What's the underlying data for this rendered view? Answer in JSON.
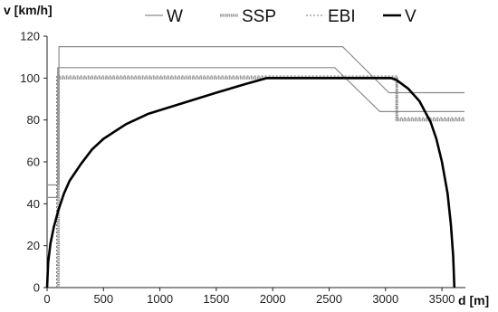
{
  "chart_data": {
    "type": "line",
    "title": "",
    "xlabel": "d [m]",
    "ylabel": "v [km/h]",
    "xlim": [
      0,
      3700
    ],
    "ylim": [
      0,
      120
    ],
    "x_ticks": [
      0,
      500,
      1000,
      1500,
      2000,
      2500,
      3000,
      3500
    ],
    "y_ticks": [
      0,
      20,
      40,
      60,
      80,
      100,
      120
    ],
    "grid": false,
    "legend_position": "top",
    "series": [
      {
        "name": "W",
        "color": "#8a8a8a",
        "style": "thin",
        "points": [
          [
            0,
            43
          ],
          [
            95,
            43
          ],
          [
            95,
            105
          ],
          [
            2550,
            105
          ],
          [
            2950,
            84
          ],
          [
            3700,
            84
          ]
        ]
      },
      {
        "name": "W",
        "color": "#8a8a8a",
        "style": "thin",
        "points": [
          [
            0,
            49
          ],
          [
            105,
            49
          ],
          [
            105,
            115
          ],
          [
            2620,
            115
          ],
          [
            3030,
            93
          ],
          [
            3700,
            93
          ]
        ]
      },
      {
        "name": "SSP",
        "color": "#9a9a9a",
        "style": "thick",
        "points": [
          [
            100,
            0
          ],
          [
            100,
            100
          ],
          [
            3100,
            100
          ],
          [
            3100,
            80
          ],
          [
            3700,
            80
          ]
        ]
      },
      {
        "name": "EBI",
        "color": "#777777",
        "style": "dotted",
        "points": [
          [
            85,
            0
          ],
          [
            85,
            101
          ],
          [
            3100,
            101
          ],
          [
            3100,
            81
          ],
          [
            3700,
            81
          ]
        ]
      },
      {
        "name": "V",
        "color": "#000000",
        "style": "bold",
        "points": [
          [
            0,
            0
          ],
          [
            10,
            12
          ],
          [
            30,
            21
          ],
          [
            60,
            29
          ],
          [
            100,
            37
          ],
          [
            150,
            45
          ],
          [
            200,
            51
          ],
          [
            300,
            59
          ],
          [
            400,
            66
          ],
          [
            500,
            71
          ],
          [
            700,
            78
          ],
          [
            900,
            83
          ],
          [
            1200,
            88
          ],
          [
            1500,
            93
          ],
          [
            1750,
            97
          ],
          [
            1950,
            100
          ],
          [
            2500,
            100
          ],
          [
            3050,
            100
          ],
          [
            3100,
            99
          ],
          [
            3200,
            95
          ],
          [
            3300,
            89
          ],
          [
            3400,
            79
          ],
          [
            3450,
            71
          ],
          [
            3500,
            60
          ],
          [
            3550,
            45
          ],
          [
            3580,
            30
          ],
          [
            3600,
            15
          ],
          [
            3610,
            0
          ]
        ]
      }
    ]
  },
  "legend": [
    {
      "label": "W",
      "color": "#8a8a8a",
      "style": "thin"
    },
    {
      "label": "SSP",
      "color": "#9a9a9a",
      "style": "thick"
    },
    {
      "label": "EBI",
      "color": "#777777",
      "style": "dotted"
    },
    {
      "label": "V",
      "color": "#000000",
      "style": "bold"
    }
  ]
}
